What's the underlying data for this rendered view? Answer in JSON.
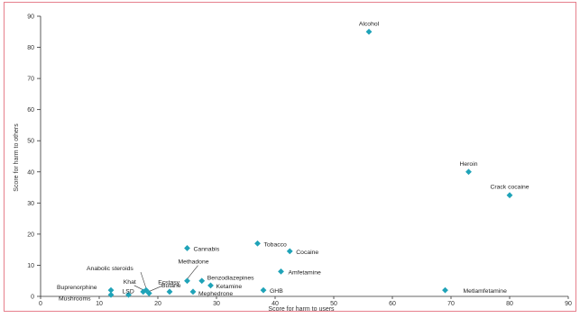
{
  "chart_data": {
    "type": "scatter",
    "xlabel": "Score for harm to users",
    "ylabel": "Score for harm to others",
    "xlim": [
      0,
      90
    ],
    "ylim": [
      0,
      90
    ],
    "x_ticks": [
      0,
      10,
      20,
      30,
      40,
      50,
      60,
      70,
      80,
      90
    ],
    "y_ticks": [
      0,
      10,
      20,
      30,
      40,
      50,
      60,
      70,
      80,
      90
    ],
    "grid": false,
    "marker_color": "#1fa3b8",
    "frame_color": "#e06070",
    "points": [
      {
        "label": "Alcohol",
        "x": 56,
        "y": 85
      },
      {
        "label": "Heroin",
        "x": 73,
        "y": 40
      },
      {
        "label": "Crack cocaine",
        "x": 80,
        "y": 32.5
      },
      {
        "label": "Tobacco",
        "x": 37,
        "y": 17
      },
      {
        "label": "Cannabis",
        "x": 25,
        "y": 15.5
      },
      {
        "label": "Cocaine",
        "x": 42.5,
        "y": 14.5
      },
      {
        "label": "Amfetamine",
        "x": 41,
        "y": 8
      },
      {
        "label": "Benzodiazepines",
        "x": 27.5,
        "y": 5
      },
      {
        "label": "Methadone",
        "x": 25,
        "y": 5
      },
      {
        "label": "Ketamine",
        "x": 29,
        "y": 3.5
      },
      {
        "label": "Anabolic steroids",
        "x": 18,
        "y": 2
      },
      {
        "label": "Khat",
        "x": 17.5,
        "y": 1.5
      },
      {
        "label": "Ecstasy",
        "x": 18.5,
        "y": 1
      },
      {
        "label": "Butane",
        "x": 22,
        "y": 1.5
      },
      {
        "label": "GHB",
        "x": 38,
        "y": 2
      },
      {
        "label": "Buprenorphine",
        "x": 12,
        "y": 2
      },
      {
        "label": "LSD",
        "x": 15,
        "y": 0.5
      },
      {
        "label": "Mushrooms",
        "x": 12,
        "y": 0.5
      },
      {
        "label": "Mephedrone",
        "x": 26,
        "y": 1.5
      },
      {
        "label": "Metlamfetamine",
        "x": 69,
        "y": 2
      }
    ]
  }
}
